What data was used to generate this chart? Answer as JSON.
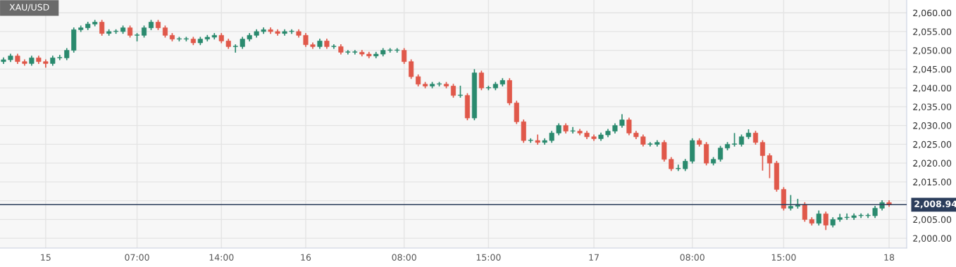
{
  "chart_data": {
    "type": "candlestick",
    "title": "XAU/USD",
    "categories": [
      null,
      null,
      null,
      null,
      null,
      null,
      "15",
      null,
      null,
      null,
      null,
      null,
      null,
      null,
      null,
      null,
      null,
      null,
      null,
      "07:00",
      null,
      null,
      null,
      null,
      null,
      null,
      null,
      null,
      null,
      null,
      null,
      "14:00",
      null,
      null,
      null,
      null,
      null,
      null,
      null,
      null,
      null,
      null,
      null,
      "16",
      null,
      null,
      null,
      null,
      null,
      null,
      null,
      null,
      null,
      null,
      null,
      null,
      null,
      "08:00",
      null,
      null,
      null,
      null,
      null,
      null,
      null,
      null,
      null,
      null,
      null,
      "15:00",
      null,
      null,
      null,
      null,
      null,
      null,
      null,
      null,
      null,
      null,
      null,
      null,
      null,
      null,
      "17",
      null,
      null,
      null,
      null,
      null,
      null,
      null,
      null,
      null,
      null,
      null,
      null,
      null,
      "08:00",
      null,
      null,
      null,
      null,
      null,
      null,
      null,
      null,
      null,
      null,
      null,
      null,
      "15:00",
      null,
      null,
      null,
      null,
      null,
      null,
      null,
      null,
      null,
      null,
      null,
      null,
      null,
      null,
      "18"
    ],
    "ohlc": [
      [
        2047,
        2048.1,
        2046.4,
        2047.5
      ],
      [
        2047.5,
        2049.1,
        2046.9,
        2048.5
      ],
      [
        2048.5,
        2049.1,
        2046.4,
        2047
      ],
      [
        2047,
        2047.6,
        2045.9,
        2046.5
      ],
      [
        2046.5,
        2048.6,
        2045.9,
        2048
      ],
      [
        2048,
        2048.6,
        2046.4,
        2047
      ],
      [
        2047,
        2047.6,
        2045.4,
        2046.5
      ],
      [
        2046.5,
        2048.6,
        2045.9,
        2048
      ],
      [
        2048,
        2048.8,
        2047.4,
        2048
      ],
      [
        2048,
        2050.6,
        2047.4,
        2050
      ],
      [
        2050,
        2056.1,
        2049.4,
        2055.5
      ],
      [
        2055.5,
        2056.6,
        2054.9,
        2056
      ],
      [
        2056,
        2057.6,
        2055.4,
        2057
      ],
      [
        2057,
        2058.1,
        2056.4,
        2057.5
      ],
      [
        2057.5,
        2058.1,
        2053.9,
        2054.5
      ],
      [
        2054.5,
        2055.6,
        2053.9,
        2055
      ],
      [
        2055,
        2055.6,
        2054.4,
        2055
      ],
      [
        2055,
        2056.6,
        2054.4,
        2056
      ],
      [
        2056,
        2056.6,
        2053.4,
        2054
      ],
      [
        2054,
        2054.6,
        2052.4,
        2054
      ],
      [
        2054,
        2056.6,
        2053.4,
        2056
      ],
      [
        2056,
        2058.1,
        2055.4,
        2057.5
      ],
      [
        2057.5,
        2058.1,
        2055.4,
        2056
      ],
      [
        2056,
        2056.6,
        2053.4,
        2054
      ],
      [
        2054,
        2054.6,
        2052.4,
        2053
      ],
      [
        2053,
        2053.6,
        2052.4,
        2053
      ],
      [
        2053,
        2053.6,
        2052.4,
        2053
      ],
      [
        2053,
        2053.6,
        2051.4,
        2052
      ],
      [
        2052,
        2053.6,
        2051.4,
        2053
      ],
      [
        2053,
        2054.1,
        2052.4,
        2053.5
      ],
      [
        2053.5,
        2054.6,
        2052.9,
        2054
      ],
      [
        2054,
        2054.6,
        2051.9,
        2052.5
      ],
      [
        2052.5,
        2053.1,
        2050.4,
        2051
      ],
      [
        2051,
        2051.6,
        2049.4,
        2051
      ],
      [
        2051,
        2053.6,
        2050.4,
        2053
      ],
      [
        2053,
        2054.6,
        2052.4,
        2054
      ],
      [
        2054,
        2055.6,
        2053.4,
        2055
      ],
      [
        2055,
        2056.1,
        2054.4,
        2055.5
      ],
      [
        2055.5,
        2056.1,
        2054.4,
        2055
      ],
      [
        2055,
        2055.6,
        2053.9,
        2054.5
      ],
      [
        2054.5,
        2055.6,
        2053.9,
        2055
      ],
      [
        2055,
        2055.6,
        2054.4,
        2055
      ],
      [
        2055,
        2055.6,
        2053.4,
        2054
      ],
      [
        2054,
        2054.6,
        2050.9,
        2051.5
      ],
      [
        2051.5,
        2052.1,
        2050.4,
        2051
      ],
      [
        2051,
        2053.1,
        2050.4,
        2052.5
      ],
      [
        2052.5,
        2053.1,
        2050.4,
        2051
      ],
      [
        2051,
        2051.6,
        2050.4,
        2051
      ],
      [
        2051,
        2051.6,
        2048.9,
        2049.5
      ],
      [
        2049.5,
        2050.1,
        2048.9,
        2049.5
      ],
      [
        2049.5,
        2050.1,
        2048.9,
        2049.5
      ],
      [
        2049.5,
        2050.1,
        2048.4,
        2049
      ],
      [
        2049,
        2049.6,
        2047.9,
        2048.5
      ],
      [
        2048.5,
        2049.6,
        2047.9,
        2049
      ],
      [
        2049,
        2050.6,
        2048.4,
        2050
      ],
      [
        2050,
        2050.6,
        2049.4,
        2050
      ],
      [
        2050,
        2050.6,
        2049.4,
        2050
      ],
      [
        2050,
        2050.6,
        2046.4,
        2047
      ],
      [
        2047,
        2047.6,
        2042.4,
        2043
      ],
      [
        2043,
        2043.6,
        2040.4,
        2041
      ],
      [
        2041,
        2041.6,
        2039.9,
        2040.5
      ],
      [
        2040.5,
        2041.6,
        2039.9,
        2041
      ],
      [
        2041,
        2041.6,
        2040.4,
        2041
      ],
      [
        2041,
        2041.6,
        2039.9,
        2040.5
      ],
      [
        2040.5,
        2041.1,
        2037.4,
        2038
      ],
      [
        2038,
        2040.6,
        2037.4,
        2038
      ],
      [
        2038,
        2038.6,
        2031.4,
        2032
      ],
      [
        2032,
        2045,
        2031.4,
        2044
      ],
      [
        2044,
        2044.6,
        2039.4,
        2040
      ],
      [
        2040,
        2040.6,
        2039.4,
        2040
      ],
      [
        2040,
        2041.6,
        2039.4,
        2041
      ],
      [
        2041,
        2042.6,
        2040.4,
        2042
      ],
      [
        2042,
        2042.6,
        2035.4,
        2036
      ],
      [
        2036,
        2036.6,
        2030.4,
        2031
      ],
      [
        2031,
        2031.6,
        2025.4,
        2026
      ],
      [
        2026,
        2026.6,
        2025.4,
        2026
      ],
      [
        2026,
        2027.6,
        2024.9,
        2025.5
      ],
      [
        2025.5,
        2026.6,
        2024.9,
        2026
      ],
      [
        2026,
        2028.6,
        2025.4,
        2028
      ],
      [
        2028,
        2030.6,
        2027.4,
        2030
      ],
      [
        2030,
        2030.6,
        2027.9,
        2028.5
      ],
      [
        2028.5,
        2029.6,
        2027.9,
        2028.5
      ],
      [
        2028.5,
        2029.1,
        2027.4,
        2028
      ],
      [
        2028,
        2028.6,
        2026.4,
        2027
      ],
      [
        2027,
        2027.6,
        2025.9,
        2026.5
      ],
      [
        2026.5,
        2028.1,
        2025.9,
        2027.5
      ],
      [
        2027.5,
        2029.1,
        2026.9,
        2028.5
      ],
      [
        2028.5,
        2030.6,
        2027.9,
        2030
      ],
      [
        2030,
        2033,
        2029.4,
        2031.5
      ],
      [
        2031.5,
        2032.1,
        2027.4,
        2028
      ],
      [
        2028,
        2028.6,
        2026.4,
        2027
      ],
      [
        2027,
        2027.6,
        2024.4,
        2025
      ],
      [
        2025,
        2025.6,
        2024.4,
        2025
      ],
      [
        2025,
        2026.1,
        2024.4,
        2025.5
      ],
      [
        2025.5,
        2026.1,
        2020.4,
        2021
      ],
      [
        2021,
        2021.6,
        2017.9,
        2018.5
      ],
      [
        2018.5,
        2019.6,
        2017.9,
        2018.5
      ],
      [
        2018.5,
        2021.1,
        2017.9,
        2020.5
      ],
      [
        2020.5,
        2026.6,
        2019.9,
        2026
      ],
      [
        2026,
        2026.6,
        2024.4,
        2025
      ],
      [
        2025,
        2025.6,
        2019.4,
        2020
      ],
      [
        2020,
        2021.6,
        2019.4,
        2021
      ],
      [
        2021,
        2024.6,
        2020.4,
        2024
      ],
      [
        2024,
        2025.6,
        2023.4,
        2025
      ],
      [
        2025,
        2028,
        2024.4,
        2025
      ],
      [
        2025,
        2027.6,
        2024.4,
        2027
      ],
      [
        2027,
        2029,
        2026.4,
        2028
      ],
      [
        2028,
        2028.6,
        2024.9,
        2025.5
      ],
      [
        2025.5,
        2026.1,
        2018,
        2022
      ],
      [
        2022,
        2022.6,
        2016,
        2020
      ],
      [
        2020,
        2020.6,
        2012.4,
        2013
      ],
      [
        2013,
        2013.6,
        2007.4,
        2008
      ],
      [
        2008,
        2011.5,
        2007.4,
        2008.5
      ],
      [
        2008.5,
        2010.5,
        2007.9,
        2009
      ],
      [
        2009,
        2009.6,
        2004.4,
        2005
      ],
      [
        2005,
        2005.6,
        2003.4,
        2004
      ],
      [
        2004,
        2007.4,
        2003.4,
        2006.5
      ],
      [
        2006.5,
        2007.1,
        2002.2,
        2003.5
      ],
      [
        2003.5,
        2005.6,
        2002.9,
        2005
      ],
      [
        2005,
        2006.5,
        2004.4,
        2005.5
      ],
      [
        2005.5,
        2006.6,
        2004.9,
        2005.5
      ],
      [
        2005.5,
        2006.6,
        2004.9,
        2006
      ],
      [
        2006,
        2006.6,
        2005.4,
        2006
      ],
      [
        2006,
        2006.6,
        2005.4,
        2006
      ],
      [
        2006,
        2008.6,
        2005.4,
        2008
      ],
      [
        2008,
        2010.1,
        2007.4,
        2009.5
      ],
      [
        2009.5,
        2010.1,
        2008.4,
        2008.94
      ]
    ],
    "ylim": [
      1997.4,
      2063.4
    ],
    "yticks": [
      {
        "value": 2000,
        "label": "2,000.00"
      },
      {
        "value": 2005,
        "label": "2,005.00"
      },
      {
        "value": 2010,
        "label": null
      },
      {
        "value": 2015,
        "label": "2,015.00"
      },
      {
        "value": 2020,
        "label": "2,020.00"
      },
      {
        "value": 2025,
        "label": "2,025.00"
      },
      {
        "value": 2030,
        "label": "2,030.00"
      },
      {
        "value": 2035,
        "label": "2,035.00"
      },
      {
        "value": 2040,
        "label": "2,040.00"
      },
      {
        "value": 2045,
        "label": "2,045.00"
      },
      {
        "value": 2050,
        "label": "2,050.00"
      },
      {
        "value": 2055,
        "label": "2,055.00"
      },
      {
        "value": 2060,
        "label": "2,060.00"
      }
    ],
    "ref_lines": [
      {
        "axis": "y",
        "value": 2008.94,
        "label": "2,008.94",
        "color": "#2c3e5c"
      }
    ],
    "grid": true
  }
}
